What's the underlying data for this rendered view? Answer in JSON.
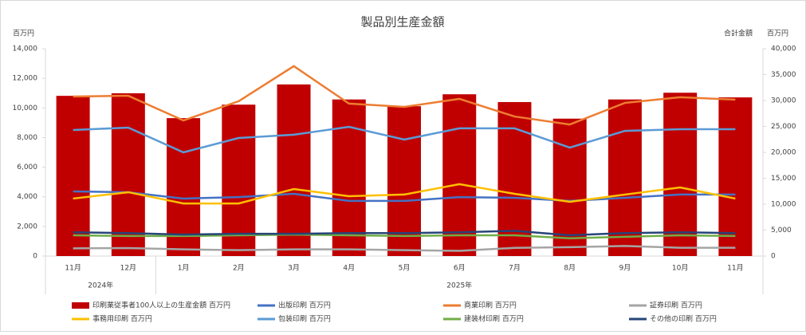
{
  "chart_data": {
    "type": "bar-line",
    "title": "製品別生産金額",
    "y_label": "百万円",
    "y2_label": "合計金額",
    "y2_unit": "百万円",
    "categories": [
      "11月",
      "12月",
      "1月",
      "2月",
      "3月",
      "4月",
      "5月",
      "6月",
      "7月",
      "8月",
      "9月",
      "10月",
      "11月"
    ],
    "groups": [
      {
        "label": "2024年",
        "span": 2
      },
      {
        "label": "2025年",
        "span": 11
      }
    ],
    "ylim": [
      0,
      14000
    ],
    "yticks": [
      0,
      {
        "value": 2000,
        "label": "2,000"
      },
      {
        "value": 4000,
        "label": "4,000"
      },
      {
        "value": 6000,
        "label": "6,000"
      },
      {
        "value": 8000,
        "label": "8,000"
      },
      {
        "value": 10000,
        "label": "10,000"
      },
      {
        "value": 12000,
        "label": "12,000"
      },
      {
        "value": 14000,
        "label": "14,000"
      }
    ],
    "y2lim": [
      0,
      40000
    ],
    "y2ticks": [
      0,
      {
        "value": 5000,
        "label": "5,000"
      },
      {
        "value": 10000,
        "label": "10,000"
      },
      {
        "value": 15000,
        "label": "15,000"
      },
      {
        "value": 20000,
        "label": "20,000"
      },
      {
        "value": 25000,
        "label": "25,000"
      },
      {
        "value": 30000,
        "label": "30,000"
      },
      {
        "value": 35000,
        "label": "35,000"
      },
      {
        "value": 40000,
        "label": "40,000"
      }
    ],
    "grid": false,
    "series": [
      {
        "name": "印刷業従事者100人以上の生産金額 百万円",
        "type": "bar",
        "axis": "y2",
        "color": "#c00000",
        "values": [
          30900,
          31400,
          26600,
          29200,
          33100,
          30200,
          28900,
          31200,
          29700,
          26500,
          30200,
          31500,
          30600
        ]
      },
      {
        "name": "出版印刷 百万円",
        "type": "line",
        "color": "#4472c4",
        "values": [
          4360,
          4310,
          3880,
          3980,
          4200,
          3720,
          3720,
          3980,
          3930,
          3720,
          3930,
          4150,
          4150
        ]
      },
      {
        "name": "商業印刷 百万円",
        "type": "line",
        "color": "#ed7d31",
        "values": [
          10770,
          10820,
          9150,
          10450,
          12820,
          10290,
          10070,
          10610,
          9420,
          8880,
          10340,
          10720,
          10560
        ]
      },
      {
        "name": "証券印刷 百万円",
        "type": "line",
        "color": "#a5a5a5",
        "values": [
          520,
          540,
          450,
          400,
          450,
          450,
          400,
          350,
          550,
          600,
          680,
          560,
          560
        ]
      },
      {
        "name": "事務用印刷 百万円",
        "type": "line",
        "color": "#ffc000",
        "values": [
          3880,
          4310,
          3550,
          3550,
          4520,
          4040,
          4150,
          4850,
          4200,
          3660,
          4150,
          4630,
          3880
        ]
      },
      {
        "name": "包装印刷 百万円",
        "type": "line",
        "color": "#5b9bd5",
        "values": [
          8510,
          8670,
          7000,
          7970,
          8190,
          8720,
          7860,
          8620,
          8620,
          7320,
          8450,
          8560,
          8560
        ]
      },
      {
        "name": "建装材印刷 百万円",
        "type": "line",
        "color": "#70ad47",
        "values": [
          1400,
          1350,
          1350,
          1400,
          1450,
          1400,
          1350,
          1400,
          1400,
          1200,
          1300,
          1400,
          1350
        ]
      },
      {
        "name": "その他の印刷 百万円",
        "type": "line",
        "color": "#264478",
        "values": [
          1600,
          1550,
          1450,
          1500,
          1500,
          1550,
          1550,
          1600,
          1700,
          1400,
          1550,
          1600,
          1550
        ]
      }
    ]
  }
}
